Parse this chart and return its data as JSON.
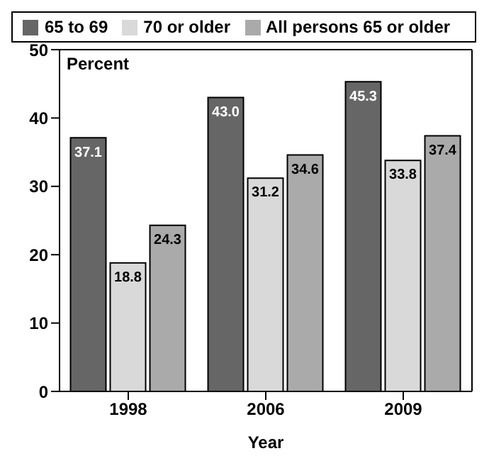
{
  "chart_data": {
    "type": "bar",
    "categories": [
      "1998",
      "2006",
      "2009"
    ],
    "series": [
      {
        "name": "65 to 69",
        "color": "#666666",
        "values": [
          37.1,
          43.0,
          45.3
        ],
        "value_labels": [
          "37.1",
          "43.0",
          "45.3"
        ]
      },
      {
        "name": "70 or older",
        "color": "#d9d9d9",
        "values": [
          18.8,
          31.2,
          33.8
        ],
        "value_labels": [
          "18.8",
          "31.2",
          "33.8"
        ]
      },
      {
        "name": "All persons 65 or older",
        "color": "#aaaaaa",
        "values": [
          24.3,
          34.6,
          37.4
        ],
        "value_labels": [
          "24.3",
          "34.6",
          "37.4"
        ]
      }
    ],
    "ylim": [
      0,
      50
    ],
    "yticks": [
      0,
      10,
      20,
      30,
      40,
      50
    ],
    "ylabel": "Percent",
    "xlabel": "Year",
    "legend": "top",
    "grid": false
  }
}
